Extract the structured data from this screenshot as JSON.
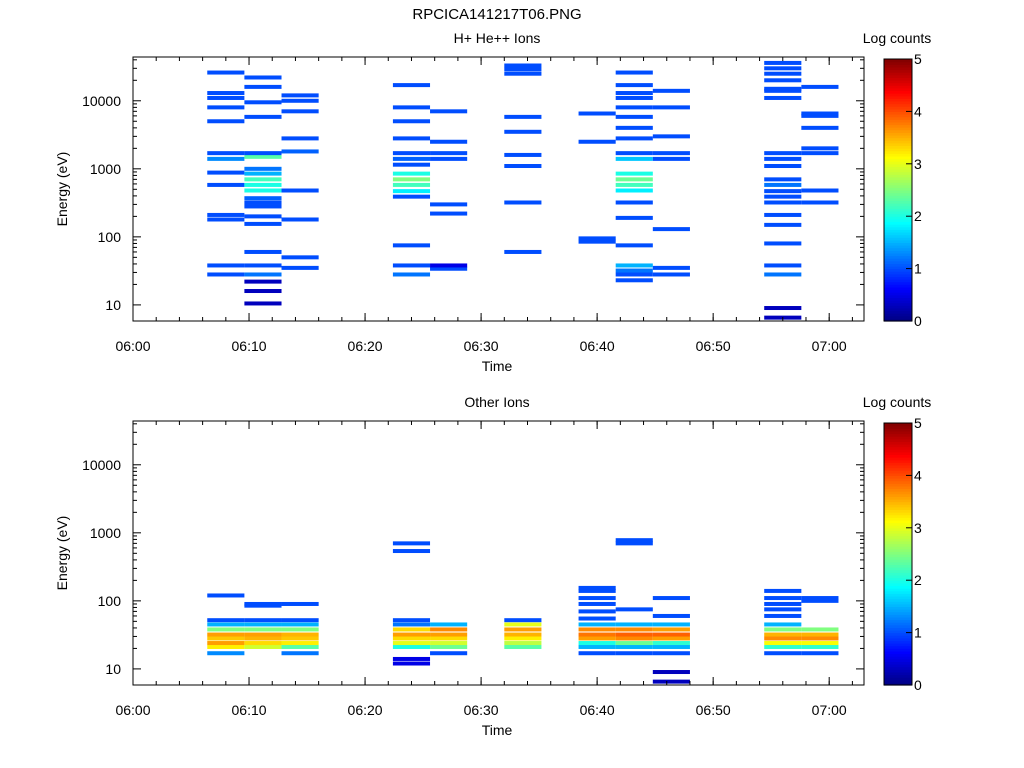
{
  "title": "RPCICA141217T06.PNG",
  "colorbar": {
    "label": "Log counts",
    "ticks": [
      "0",
      "1",
      "2",
      "3",
      "4",
      "5"
    ],
    "min": 0,
    "max": 5
  },
  "chart_data": [
    {
      "type": "heatmap",
      "title": "H+ He++ Ions",
      "xlabel": "Time",
      "ylabel": "Energy (eV)",
      "xlim": [
        "06:00",
        "07:03"
      ],
      "ylim": [
        5.8,
        44000
      ],
      "yscale": "log",
      "x_tick_labels": [
        "06:00",
        "06:10",
        "06:20",
        "06:30",
        "06:40",
        "06:50",
        "07:00"
      ],
      "y_tick_labels": [
        "10",
        "100",
        "1000",
        "10000"
      ],
      "columns": [
        {
          "t_start": "06:06.4",
          "t_end": "06:09.6",
          "cells": [
            [
              28,
              1
            ],
            [
              38,
              1
            ],
            [
              180,
              1
            ],
            [
              210,
              1
            ],
            [
              580,
              1
            ],
            [
              880,
              1
            ],
            [
              1400,
              1.3
            ],
            [
              1700,
              1
            ],
            [
              5000,
              1
            ],
            [
              8000,
              1
            ],
            [
              11000,
              1
            ],
            [
              13000,
              1
            ],
            [
              26000,
              1
            ]
          ]
        },
        {
          "t_start": "06:09.6",
          "t_end": "06:12.8",
          "cells": [
            [
              10.5,
              0.3
            ],
            [
              16,
              0.3
            ],
            [
              22,
              0.3
            ],
            [
              28,
              1.2
            ],
            [
              38,
              1
            ],
            [
              60,
              1
            ],
            [
              155,
              1
            ],
            [
              200,
              1
            ],
            [
              280,
              1
            ],
            [
              320,
              1
            ],
            [
              370,
              1.1
            ],
            [
              480,
              2
            ],
            [
              580,
              2
            ],
            [
              700,
              2.2
            ],
            [
              850,
              1.5
            ],
            [
              1000,
              1.2
            ],
            [
              1500,
              2.3
            ],
            [
              1700,
              1
            ],
            [
              5800,
              1
            ],
            [
              9500,
              1
            ],
            [
              16000,
              1
            ],
            [
              22000,
              1
            ]
          ]
        },
        {
          "t_start": "06:12.8",
          "t_end": "06:16.0",
          "cells": [
            [
              35,
              1
            ],
            [
              50,
              1
            ],
            [
              180,
              1
            ],
            [
              480,
              1
            ],
            [
              1800,
              1.1
            ],
            [
              2800,
              1
            ],
            [
              7000,
              1
            ],
            [
              10000,
              1
            ],
            [
              12000,
              1
            ]
          ]
        },
        {
          "t_start": "06:22.4",
          "t_end": "06:25.6",
          "cells": [
            [
              28,
              1.2
            ],
            [
              38,
              1
            ],
            [
              75,
              1
            ],
            [
              390,
              1
            ],
            [
              470,
              1.8
            ],
            [
              580,
              2.2
            ],
            [
              700,
              2.5
            ],
            [
              850,
              2
            ],
            [
              1150,
              1
            ],
            [
              1400,
              1.1
            ],
            [
              1700,
              1
            ],
            [
              2800,
              1
            ],
            [
              5000,
              1
            ],
            [
              8000,
              1
            ],
            [
              17000,
              1
            ]
          ]
        },
        {
          "t_start": "06:25.6",
          "t_end": "06:28.8",
          "cells": [
            [
              34,
              1
            ],
            [
              38,
              0.5
            ],
            [
              220,
              1
            ],
            [
              300,
              1
            ],
            [
              1400,
              1
            ],
            [
              1700,
              1
            ],
            [
              2500,
              1
            ],
            [
              7000,
              1
            ]
          ]
        },
        {
          "t_start": "06:32.0",
          "t_end": "06:35.2",
          "cells": [
            [
              60,
              1
            ],
            [
              320,
              1
            ],
            [
              1100,
              1
            ],
            [
              1600,
              1
            ],
            [
              3500,
              1
            ],
            [
              5800,
              1
            ],
            [
              25000,
              1
            ],
            [
              29000,
              1
            ],
            [
              33000,
              1
            ]
          ]
        },
        {
          "t_start": "06:38.4",
          "t_end": "06:41.6",
          "cells": [
            [
              85,
              1
            ],
            [
              95,
              1
            ],
            [
              2500,
              1
            ],
            [
              6500,
              1
            ]
          ]
        },
        {
          "t_start": "06:41.6",
          "t_end": "06:44.8",
          "cells": [
            [
              23,
              1
            ],
            [
              28,
              1
            ],
            [
              32,
              1.2
            ],
            [
              38,
              1.5
            ],
            [
              75,
              1
            ],
            [
              190,
              1
            ],
            [
              320,
              1
            ],
            [
              480,
              1.8
            ],
            [
              580,
              2.2
            ],
            [
              700,
              2.4
            ],
            [
              850,
              2
            ],
            [
              1400,
              1.6
            ],
            [
              1700,
              1
            ],
            [
              2800,
              1
            ],
            [
              4000,
              1
            ],
            [
              5800,
              1
            ],
            [
              8000,
              1
            ],
            [
              11000,
              1
            ],
            [
              13000,
              1
            ],
            [
              17000,
              1
            ],
            [
              26000,
              1
            ]
          ]
        },
        {
          "t_start": "06:44.8",
          "t_end": "06:48.0",
          "cells": [
            [
              28,
              1
            ],
            [
              35,
              1
            ],
            [
              130,
              1
            ],
            [
              1400,
              1
            ],
            [
              1700,
              1
            ],
            [
              3000,
              1
            ],
            [
              8000,
              1
            ],
            [
              14000,
              1
            ]
          ]
        },
        {
          "t_start": "06:54.4",
          "t_end": "06:57.6",
          "cells": [
            [
              6.5,
              0.3
            ],
            [
              9,
              0.3
            ],
            [
              28,
              1.2
            ],
            [
              38,
              1
            ],
            [
              80,
              1
            ],
            [
              150,
              1
            ],
            [
              210,
              1
            ],
            [
              320,
              1
            ],
            [
              390,
              1
            ],
            [
              470,
              1
            ],
            [
              580,
              1.2
            ],
            [
              700,
              1
            ],
            [
              1100,
              1
            ],
            [
              1400,
              1
            ],
            [
              1700,
              1
            ],
            [
              11000,
              1
            ],
            [
              14000,
              1
            ],
            [
              15000,
              1
            ],
            [
              20000,
              1
            ],
            [
              25000,
              1
            ],
            [
              30000,
              1
            ],
            [
              36000,
              1
            ]
          ]
        },
        {
          "t_start": "06:57.6",
          "t_end": "07:00.8",
          "cells": [
            [
              320,
              1
            ],
            [
              480,
              1
            ],
            [
              1700,
              1
            ],
            [
              2000,
              1
            ],
            [
              4000,
              1
            ],
            [
              6000,
              1
            ],
            [
              6500,
              1
            ],
            [
              16000,
              1
            ]
          ]
        }
      ]
    },
    {
      "type": "heatmap",
      "title": "Other Ions",
      "xlabel": "Time",
      "ylabel": "Energy (eV)",
      "xlim": [
        "06:00",
        "07:03"
      ],
      "ylim": [
        5.8,
        44000
      ],
      "yscale": "log",
      "x_tick_labels": [
        "06:00",
        "06:10",
        "06:20",
        "06:30",
        "06:40",
        "06:50",
        "07:00"
      ],
      "y_tick_labels": [
        "10",
        "100",
        "1000",
        "10000"
      ],
      "columns": [
        {
          "t_start": "06:06.4",
          "t_end": "06:09.6",
          "cells": [
            [
              17,
              1.3
            ],
            [
              21,
              3.2
            ],
            [
              24,
              3.6
            ],
            [
              28,
              3.4
            ],
            [
              32,
              3.6
            ],
            [
              38,
              2.5
            ],
            [
              45,
              1.5
            ],
            [
              52,
              1
            ],
            [
              120,
              1
            ]
          ]
        },
        {
          "t_start": "06:09.6",
          "t_end": "06:12.8",
          "cells": [
            [
              21,
              2.9
            ],
            [
              24,
              3.3
            ],
            [
              28,
              3.5
            ],
            [
              32,
              3.6
            ],
            [
              38,
              2.5
            ],
            [
              45,
              1.5
            ],
            [
              52,
              1
            ],
            [
              85,
              1
            ],
            [
              90,
              1
            ]
          ]
        },
        {
          "t_start": "06:12.8",
          "t_end": "06:16.0",
          "cells": [
            [
              17,
              1.2
            ],
            [
              21,
              2.3
            ],
            [
              24,
              3.2
            ],
            [
              28,
              3.4
            ],
            [
              32,
              3.5
            ],
            [
              38,
              2.5
            ],
            [
              45,
              1.5
            ],
            [
              52,
              1
            ],
            [
              90,
              1
            ]
          ]
        },
        {
          "t_start": "06:22.4",
          "t_end": "06:25.6",
          "cells": [
            [
              12,
              0.5
            ],
            [
              14,
              0.5
            ],
            [
              21,
              2
            ],
            [
              24,
              3
            ],
            [
              28,
              3.3
            ],
            [
              32,
              3.6
            ],
            [
              38,
              3.3
            ],
            [
              45,
              1.2
            ],
            [
              52,
              1
            ],
            [
              540,
              1
            ],
            [
              700,
              1
            ]
          ]
        },
        {
          "t_start": "06:25.6",
          "t_end": "06:28.8",
          "cells": [
            [
              17,
              1
            ],
            [
              21,
              2.4
            ],
            [
              24,
              2.9
            ],
            [
              28,
              3.3
            ],
            [
              32,
              3.6
            ],
            [
              38,
              3.7
            ],
            [
              45,
              1.5
            ]
          ]
        },
        {
          "t_start": "06:32.0",
          "t_end": "06:35.2",
          "cells": [
            [
              21,
              2.3
            ],
            [
              24,
              2.8
            ],
            [
              28,
              3.2
            ],
            [
              32,
              3.5
            ],
            [
              38,
              3.6
            ],
            [
              45,
              3.0
            ],
            [
              52,
              1
            ]
          ]
        },
        {
          "t_start": "06:38.4",
          "t_end": "06:41.6",
          "cells": [
            [
              17,
              1
            ],
            [
              21,
              1.5
            ],
            [
              24,
              2
            ],
            [
              28,
              3.6
            ],
            [
              32,
              3.8
            ],
            [
              38,
              3.7
            ],
            [
              45,
              1.5
            ],
            [
              55,
              1
            ],
            [
              70,
              1
            ],
            [
              90,
              1
            ],
            [
              110,
              1
            ],
            [
              140,
              1
            ],
            [
              155,
              1
            ]
          ]
        },
        {
          "t_start": "06:41.6",
          "t_end": "06:44.8",
          "cells": [
            [
              17,
              1
            ],
            [
              21,
              1.5
            ],
            [
              24,
              2.4
            ],
            [
              28,
              3.7
            ],
            [
              32,
              3.9
            ],
            [
              38,
              3.7
            ],
            [
              45,
              1.5
            ],
            [
              75,
              1
            ],
            [
              700,
              1
            ],
            [
              780,
              1
            ]
          ]
        },
        {
          "t_start": "06:44.8",
          "t_end": "06:48.0",
          "cells": [
            [
              6.5,
              0.3
            ],
            [
              9,
              0.3
            ],
            [
              17,
              1
            ],
            [
              21,
              1.5
            ],
            [
              24,
              2.1
            ],
            [
              28,
              3.6
            ],
            [
              32,
              3.9
            ],
            [
              38,
              3.6
            ],
            [
              45,
              1.5
            ],
            [
              60,
              1
            ],
            [
              110,
              1
            ]
          ]
        },
        {
          "t_start": "06:54.4",
          "t_end": "06:57.6",
          "cells": [
            [
              17,
              1
            ],
            [
              21,
              2.1
            ],
            [
              24,
              3.1
            ],
            [
              28,
              3.7
            ],
            [
              32,
              3.5
            ],
            [
              38,
              2.5
            ],
            [
              45,
              1.5
            ],
            [
              60,
              1
            ],
            [
              75,
              1
            ],
            [
              90,
              1
            ],
            [
              110,
              1
            ],
            [
              140,
              1
            ]
          ]
        },
        {
          "t_start": "06:57.6",
          "t_end": "07:00.8",
          "cells": [
            [
              17,
              1
            ],
            [
              21,
              2.1
            ],
            [
              24,
              3.1
            ],
            [
              28,
              3.7
            ],
            [
              32,
              3.5
            ],
            [
              38,
              2.5
            ],
            [
              100,
              1
            ],
            [
              110,
              1
            ]
          ]
        }
      ]
    }
  ]
}
